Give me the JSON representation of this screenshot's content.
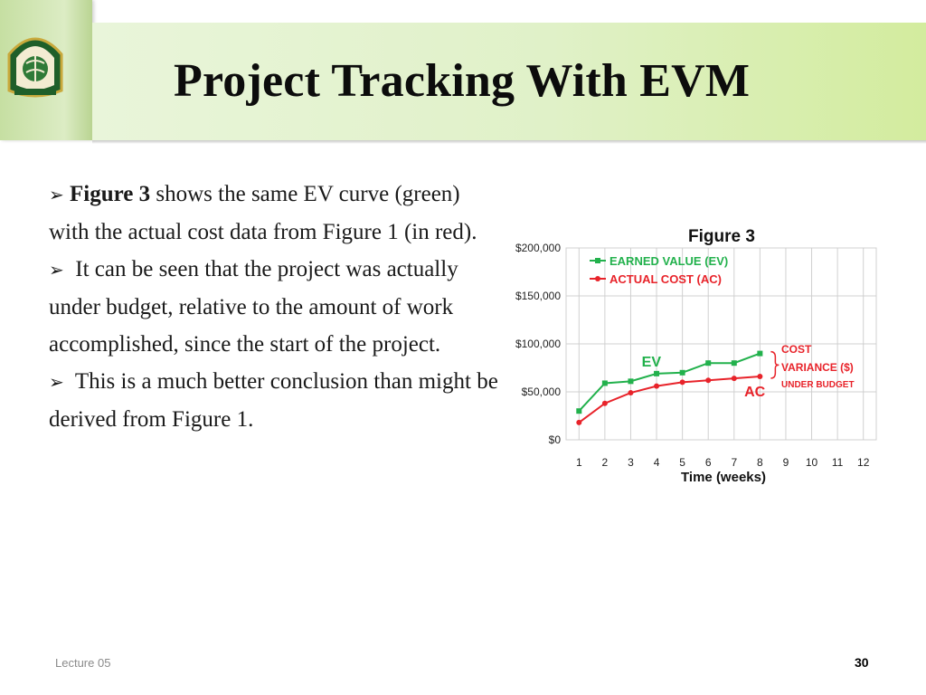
{
  "slide": {
    "title": "Project Tracking With EVM",
    "body": [
      {
        "arrow": "➢",
        "lead": "Figure 3",
        "text": " shows the same EV curve (green) with the actual cost data from Figure 1 (in red)."
      },
      {
        "arrow": "➢",
        "lead": "",
        "text": "It can be seen that the project was actually under budget, relative to the amount of work accomplished, since the start of the project."
      },
      {
        "arrow": "➢",
        "lead": "",
        "text": "This is a much better conclusion than might be derived from Figure 1."
      }
    ],
    "footer_left": "Lecture 05",
    "page_number": "30"
  },
  "colors": {
    "ev": "#22b14c",
    "ac": "#e8232a",
    "grid": "#d0d0d0"
  },
  "icons": {
    "logo": "university-seal-icon"
  },
  "chart_data": {
    "type": "line",
    "title": "Figure 3",
    "xlabel": "Time (weeks)",
    "ylabel": "",
    "x": [
      1,
      2,
      3,
      4,
      5,
      6,
      7,
      8,
      9,
      10,
      11,
      12
    ],
    "ylim": [
      0,
      200000
    ],
    "yticks": [
      "$0",
      "$50,000",
      "$100,000",
      "$150,000",
      "$200,000"
    ],
    "series": [
      {
        "name": "EARNED VALUE (EV)",
        "label": "EV",
        "color": "#22b14c",
        "marker": "square",
        "x": [
          1,
          2,
          3,
          4,
          5,
          6,
          7,
          8
        ],
        "values": [
          30000,
          59000,
          61000,
          69000,
          70000,
          80000,
          80000,
          90000
        ]
      },
      {
        "name": "ACTUAL COST (AC)",
        "label": "AC",
        "color": "#e8232a",
        "marker": "circle",
        "x": [
          1,
          2,
          3,
          4,
          5,
          6,
          7,
          8
        ],
        "values": [
          18000,
          38000,
          49000,
          56000,
          60000,
          62000,
          64000,
          66000
        ]
      }
    ],
    "annotation": {
      "lines": [
        "COST",
        "VARIANCE ($)"
      ],
      "sub": "UNDER BUDGET",
      "color": "#e8232a"
    },
    "legend": "top-left",
    "grid": true
  }
}
